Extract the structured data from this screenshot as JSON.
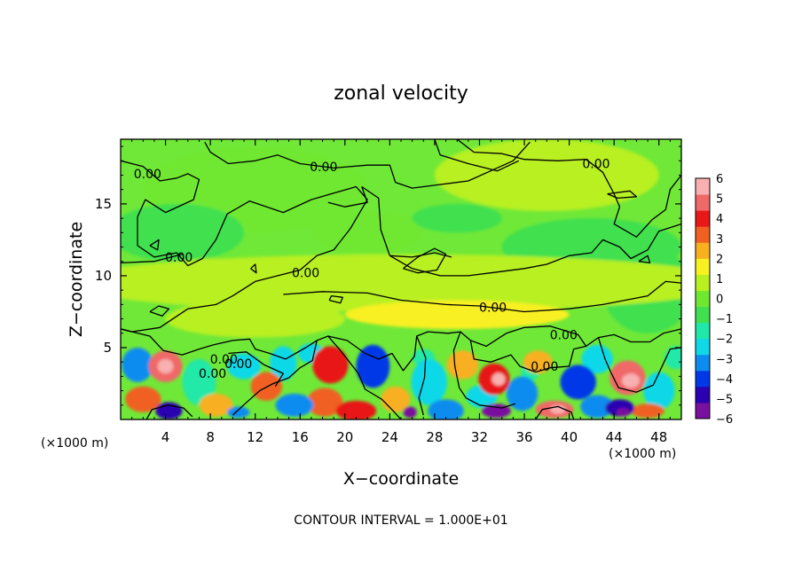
{
  "chart_data": {
    "type": "heatmap",
    "title": "zonal velocity",
    "xlabel": "X−coordinate",
    "ylabel": "Z−coordinate",
    "x_unit_left": "(×1000 m)",
    "x_unit_right": "(×1000 m)",
    "xlim": [
      0,
      50
    ],
    "ylim": [
      0,
      19.5
    ],
    "x_ticks": [
      "4",
      "8",
      "12",
      "16",
      "20",
      "24",
      "28",
      "32",
      "36",
      "40",
      "44",
      "48"
    ],
    "y_ticks": [
      "5",
      "10",
      "15"
    ],
    "colorbar_ticks": [
      "6",
      "5",
      "4",
      "3",
      "2",
      "1",
      "0",
      "−1",
      "−2",
      "−3",
      "−4",
      "−5",
      "−6"
    ],
    "colorbar_range": [
      -6,
      6
    ],
    "colorbar_colors": [
      "#7a10a0",
      "#2a00b0",
      "#0038e8",
      "#0a8cf0",
      "#10d8e8",
      "#20e8a8",
      "#40e050",
      "#70e830",
      "#b8f020",
      "#f8f020",
      "#f8b020",
      "#f06020",
      "#e81818",
      "#f06868",
      "#f8b0b0"
    ],
    "contour_labels": [
      "0.00",
      "0.00",
      "0.00",
      "0.00",
      "0.00",
      "0.00",
      "0.00",
      "0.00",
      "0.00",
      "0.00",
      "0.00"
    ],
    "contour_interval_text": "CONTOUR INTERVAL = 1.000E+01",
    "grid": false,
    "legend": "right"
  }
}
